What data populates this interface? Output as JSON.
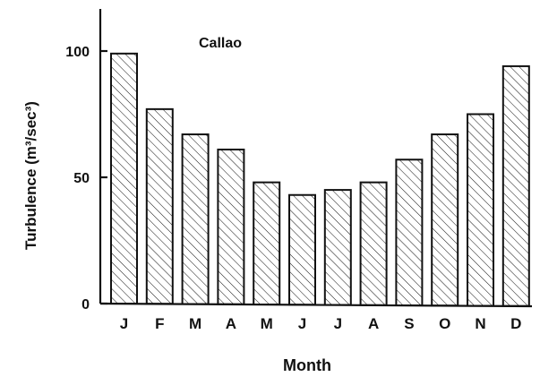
{
  "chart_data": {
    "type": "bar",
    "title": "Callao",
    "xlabel": "Month",
    "ylabel": "Turbulence (m³/sec³)",
    "categories": [
      "J",
      "F",
      "M",
      "A",
      "M",
      "J",
      "J",
      "A",
      "S",
      "O",
      "N",
      "D"
    ],
    "values": [
      99,
      77,
      67,
      61,
      48,
      43,
      45,
      48,
      57,
      67,
      75,
      94
    ],
    "ylim": [
      0,
      120
    ],
    "yticks": [
      0,
      50,
      100
    ],
    "ytick_labels": [
      "0",
      "50",
      "100"
    ],
    "grid": false,
    "legend": "none",
    "bar_fill": "diagonal-hatch",
    "colors": {
      "ink": "#111111",
      "background": "#ffffff"
    }
  }
}
